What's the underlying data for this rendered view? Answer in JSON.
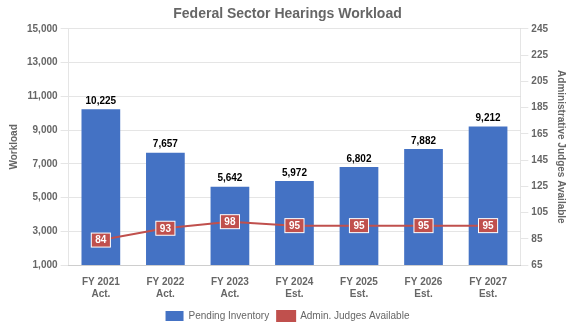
{
  "chart_data": {
    "type": "bar",
    "title": "Federal Sector Hearings Workload",
    "categories": [
      "FY 2021\nAct.",
      "FY 2022\nAct.",
      "FY 2023\nAct.",
      "FY 2024\nEst.",
      "FY 2025\nEst.",
      "FY 2026\nEst.",
      "FY 2027\nEst."
    ],
    "series": [
      {
        "name": "Pending Inventory",
        "type": "bar",
        "color": "#4472C4",
        "values": [
          10225,
          7657,
          5642,
          5972,
          6802,
          7882,
          9212
        ],
        "value_labels": [
          "10,225",
          "7,657",
          "5,642",
          "5,972",
          "6,802",
          "7,882",
          "9,212"
        ]
      },
      {
        "name": "Admin. Judges Available",
        "type": "line",
        "color": "#C0504D",
        "axis": "y2",
        "marker": "square",
        "values": [
          84,
          93,
          98,
          95,
          95,
          95,
          95
        ]
      }
    ],
    "ylabel": "Workload",
    "y2label": "Administrative Judges Available",
    "ylim": [
      1000,
      15000
    ],
    "yticks": [
      {
        "value": 1000,
        "label": "1,000"
      },
      {
        "value": 3000,
        "label": "3,000"
      },
      {
        "value": 5000,
        "label": "5,000"
      },
      {
        "value": 7000,
        "label": "7,000"
      },
      {
        "value": 9000,
        "label": "9,000"
      },
      {
        "value": 11000,
        "label": "11,000"
      },
      {
        "value": 13000,
        "label": "13,000"
      },
      {
        "value": 15000,
        "label": "15,000"
      }
    ],
    "y2lim": [
      65,
      245
    ],
    "y2ticks": [
      65,
      85,
      105,
      125,
      145,
      165,
      185,
      205,
      225,
      245
    ],
    "grid": true,
    "data_labels": true,
    "legend": "bottom"
  }
}
